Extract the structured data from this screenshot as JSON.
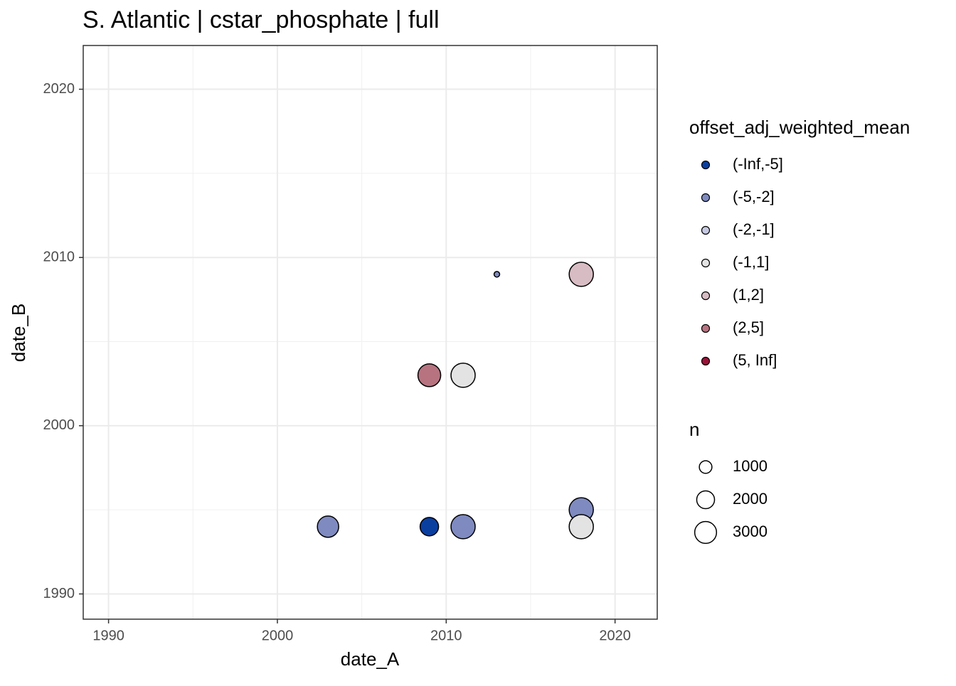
{
  "chart_data": {
    "type": "scatter",
    "title": "S. Atlantic | cstar_phosphate | full",
    "x_label": "date_A",
    "y_label": "date_B",
    "xlim": [
      1988.5,
      2022.5
    ],
    "ylim": [
      1988.5,
      2022.6
    ],
    "xticks": [
      1990,
      2000,
      2010,
      2020
    ],
    "yticks": [
      1990,
      2000,
      2010,
      2020
    ],
    "grid": true,
    "legend_title": "offset_adj_weighted_mean",
    "series": [
      {
        "name": "(-Inf,-5]",
        "color": "#0a3fa0",
        "x": [
          2009
        ],
        "y": [
          1994
        ],
        "n": [
          2150
        ]
      },
      {
        "name": "(-5,-2]",
        "color": "#7f8ac0",
        "x": [
          2003,
          2011,
          2018,
          2013
        ],
        "y": [
          1994,
          1994,
          1995,
          2009
        ],
        "n": [
          2870,
          3690,
          3690,
          200
        ]
      },
      {
        "name": "(-2,-1]",
        "color": "#c6c9e1",
        "x": [],
        "y": [],
        "n": []
      },
      {
        "name": "(-1,1]",
        "color": "#e3e3e3",
        "x": [
          2018,
          2011
        ],
        "y": [
          1994,
          2003
        ],
        "n": [
          3690,
          3690
        ]
      },
      {
        "name": "(1,2]",
        "color": "#d8bcc3",
        "x": [
          2018
        ],
        "y": [
          2009
        ],
        "n": [
          3690
        ]
      },
      {
        "name": "(2,5]",
        "color": "#b77380",
        "x": [
          2009
        ],
        "y": [
          2003
        ],
        "n": [
          3270
        ]
      },
      {
        "name": "(5, Inf]",
        "color": "#9b1238",
        "x": [],
        "y": [],
        "n": []
      }
    ],
    "size_legend": {
      "title": "n",
      "values": [
        1000,
        2000,
        3000
      ]
    }
  }
}
